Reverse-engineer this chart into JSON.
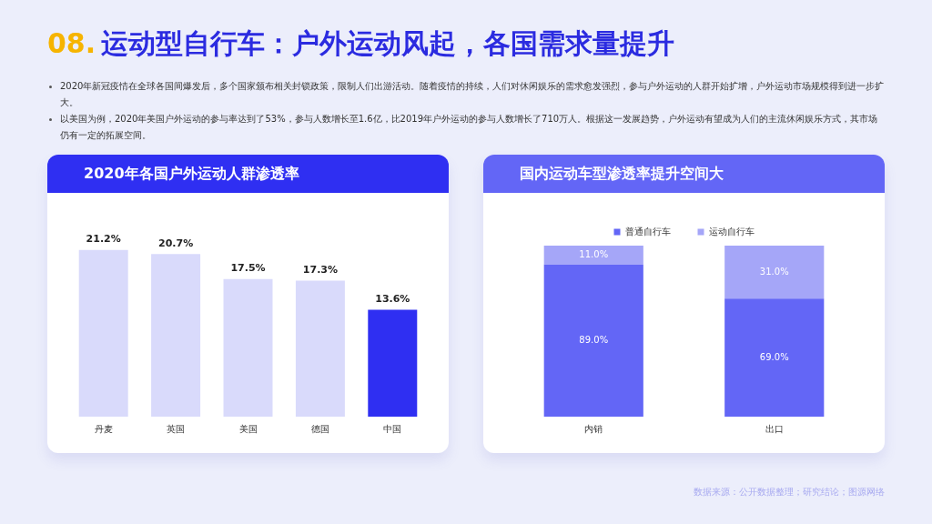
{
  "chart_data": [
    {
      "type": "other",
      "title": "08. 运动型自行车：户外运动风起，各国需求量提升",
      "annotations": [
        "2020年新冠疫情在全球各国间爆发后，多个国家颁布相关封锁政策，限制人们出游活动。随着疫情的持续，人们对休闲娱乐的需求愈发强烈，参与户外运动的人群开始扩增，户外运动市场规模得到进一步扩大。",
        "以美国为例，2020年美国户外运动的参与率达到了53%，参与人数增长至1.6亿，比2019年户外运动的参与人数增长了710万人。根据这一发展趋势，户外运动有望成为人们的主流休闲娱乐方式，其市场仍有一定的拓展空间。",
        "数据来源：公开数据整理；研究结论；图源网络"
      ]
    },
    {
      "type": "bar",
      "title": "2020年各国户外运动人群渗透率",
      "categories": [
        "丹麦",
        "英国",
        "美国",
        "德国",
        "中国"
      ],
      "values": [
        21.2,
        20.7,
        17.5,
        17.3,
        13.6
      ],
      "colors": [
        "#d9dafb",
        "#d9dafb",
        "#d9dafb",
        "#d9dafb",
        "#2f2ff2"
      ],
      "value_labels": [
        "21.2%",
        "20.7%",
        "17.5%",
        "17.3%",
        "13.6%"
      ],
      "tick_labels": "x"
    },
    {
      "type": "bar",
      "title": "国内运动车型渗透率提升空间大",
      "categories": [
        "内销",
        "出口"
      ],
      "stacked": true,
      "legend": "top",
      "tick_labels": "x",
      "series": [
        {
          "name": "普通自行车",
          "color": "#6366f6",
          "values": [
            89.0,
            69.0
          ],
          "value_labels": [
            "89.0%",
            "69.0%"
          ]
        },
        {
          "name": "运动自行车",
          "color": "#a5a6f8",
          "values": [
            11.0,
            31.0
          ],
          "value_labels": [
            "11.0%",
            "31.0%"
          ]
        }
      ]
    }
  ]
}
